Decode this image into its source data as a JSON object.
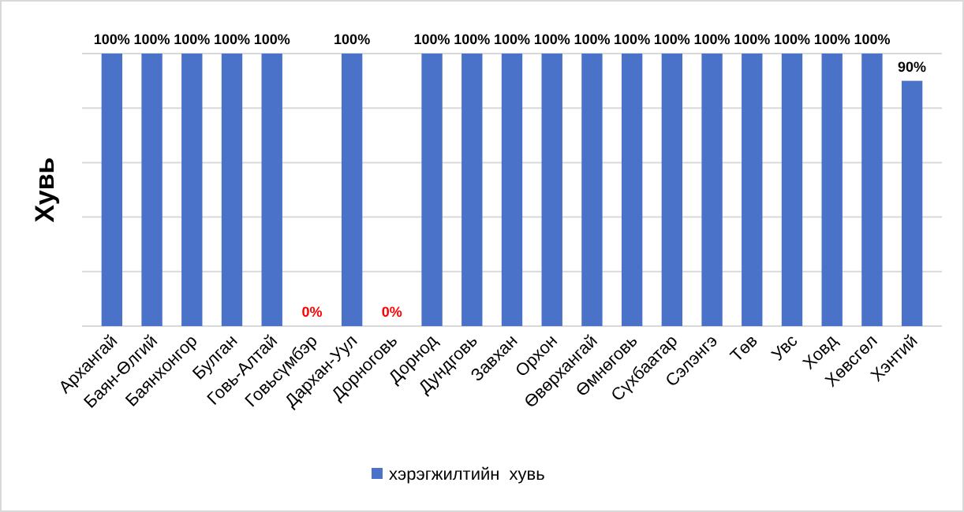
{
  "chart_data": {
    "type": "bar",
    "ylabel": "Хувь",
    "categories": [
      "Архангай",
      "Баян-Өлгий",
      "Баянхонгор",
      "Булган",
      "Говь-Алтай",
      "Говьсүмбэр",
      "Дархан-Уул",
      "Дорноговь",
      "Дорнод",
      "Дундговь",
      "Завхан",
      "Орхон",
      "Өвөрхангай",
      "Өмнөговь",
      "Сүхбаатар",
      "Сэлэнгэ",
      "Төв",
      "Увс",
      "Ховд",
      "Хөвсгөл",
      "Хэнтий"
    ],
    "series": [
      {
        "name": "хэрэгжилтийн  хувь",
        "color": "#4a72c8",
        "values": [
          100,
          100,
          100,
          100,
          100,
          0,
          100,
          0,
          100,
          100,
          100,
          100,
          100,
          100,
          100,
          100,
          100,
          100,
          100,
          100,
          90
        ],
        "value_labels": [
          "100%",
          "100%",
          "100%",
          "100%",
          "100%",
          "0%",
          "100%",
          "0%",
          "100%",
          "100%",
          "100%",
          "100%",
          "100%",
          "100%",
          "100%",
          "100%",
          "100%",
          "100%",
          "100%",
          "100%",
          "90%"
        ]
      }
    ],
    "ylim": [
      0,
      100
    ],
    "yticks": [
      {
        "value": 0,
        "label": null
      },
      {
        "value": 20,
        "label": null
      },
      {
        "value": 40,
        "label": null
      },
      {
        "value": 60,
        "label": null
      },
      {
        "value": 80,
        "label": null
      },
      {
        "value": 100,
        "label": null
      }
    ],
    "tick_labels": "x",
    "grid": "y",
    "legend": "bottom"
  }
}
